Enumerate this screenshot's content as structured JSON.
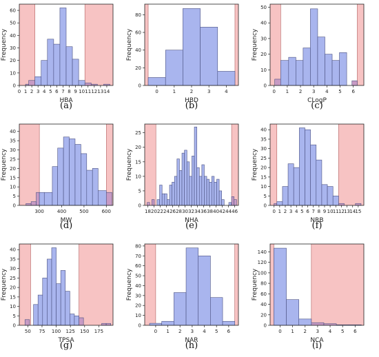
{
  "figure": {
    "bar_color": "#a9b5ee",
    "bar_stroke": "#4a5080",
    "excluded_color": "#f7c3c3",
    "excluded_bar_color": "#c79ac4"
  },
  "chart_data": [
    {
      "id": "a",
      "letter": "(a)",
      "type": "bar",
      "xlabel": "HBA",
      "ylabel": "Frequency",
      "xlim": [
        0,
        15
      ],
      "ylim": [
        0,
        65
      ],
      "xticks": [
        0,
        1,
        2,
        3,
        4,
        5,
        6,
        7,
        8,
        9,
        10,
        11,
        12,
        13,
        14
      ],
      "yticks": [
        0,
        10,
        20,
        30,
        40,
        50,
        60
      ],
      "excluded_ranges": [
        [
          0,
          2.5
        ],
        [
          10.5,
          15
        ]
      ],
      "bins": [
        {
          "x0": 1,
          "x1": 1.5,
          "value": 1,
          "excluded": true
        },
        {
          "x0": 1.5,
          "x1": 2.5,
          "value": 4,
          "excluded": true
        },
        {
          "x0": 2.5,
          "x1": 3.5,
          "value": 7
        },
        {
          "x0": 3.5,
          "x1": 4.5,
          "value": 20
        },
        {
          "x0": 4.5,
          "x1": 5.5,
          "value": 37
        },
        {
          "x0": 5.5,
          "x1": 6.5,
          "value": 33
        },
        {
          "x0": 6.5,
          "x1": 7.5,
          "value": 62
        },
        {
          "x0": 7.5,
          "x1": 8.5,
          "value": 31
        },
        {
          "x0": 8.5,
          "x1": 9.5,
          "value": 21
        },
        {
          "x0": 9.5,
          "x1": 10.5,
          "value": 4
        },
        {
          "x0": 10.5,
          "x1": 11.5,
          "value": 2,
          "excluded": true
        },
        {
          "x0": 11.5,
          "x1": 12.5,
          "value": 1,
          "excluded": true
        },
        {
          "x0": 13.5,
          "x1": 14.5,
          "value": 1,
          "excluded": true
        }
      ]
    },
    {
      "id": "b",
      "letter": "(b)",
      "type": "bar",
      "xlabel": "HBD",
      "ylabel": "Frequency",
      "xlim": [
        -0.7,
        4.7
      ],
      "ylim": [
        0,
        92
      ],
      "xticks": [
        0,
        1,
        2,
        3,
        4
      ],
      "yticks": [
        0,
        20,
        40,
        60,
        80
      ],
      "excluded_ranges": [
        [
          -0.7,
          -0.5
        ],
        [
          4.5,
          4.7
        ]
      ],
      "bins": [
        {
          "x0": -0.5,
          "x1": 0.5,
          "value": 9
        },
        {
          "x0": 0.5,
          "x1": 1.5,
          "value": 40
        },
        {
          "x0": 1.5,
          "x1": 2.5,
          "value": 87
        },
        {
          "x0": 2.5,
          "x1": 3.5,
          "value": 66
        },
        {
          "x0": 3.5,
          "x1": 4.5,
          "value": 16
        }
      ]
    },
    {
      "id": "c",
      "letter": "(c)",
      "type": "bar",
      "xlabel": "CLogP",
      "ylabel": "Frequency",
      "xlim": [
        -0.3,
        6.8
      ],
      "ylim": [
        0,
        52
      ],
      "xticks": [
        0,
        1,
        2,
        3,
        4,
        5,
        6
      ],
      "yticks": [
        0,
        10,
        20,
        30,
        40,
        50
      ],
      "excluded_ranges": [
        [
          -0.3,
          0.5
        ],
        [
          6.3,
          6.8
        ]
      ],
      "bins": [
        {
          "x0": 0.05,
          "x1": 0.5,
          "value": 4,
          "excluded": true
        },
        {
          "x0": 0.5,
          "x1": 1.1,
          "value": 16
        },
        {
          "x0": 1.1,
          "x1": 1.65,
          "value": 18
        },
        {
          "x0": 1.65,
          "x1": 2.2,
          "value": 16
        },
        {
          "x0": 2.2,
          "x1": 2.75,
          "value": 24
        },
        {
          "x0": 2.75,
          "x1": 3.3,
          "value": 49
        },
        {
          "x0": 3.3,
          "x1": 3.85,
          "value": 31
        },
        {
          "x0": 3.85,
          "x1": 4.4,
          "value": 20
        },
        {
          "x0": 4.4,
          "x1": 4.95,
          "value": 16
        },
        {
          "x0": 4.95,
          "x1": 5.5,
          "value": 21
        },
        {
          "x0": 5.9,
          "x1": 6.3,
          "value": 3,
          "excluded": true
        }
      ]
    },
    {
      "id": "d",
      "letter": "(d)",
      "type": "bar",
      "xlabel": "MW",
      "ylabel": "Frequency",
      "xlim": [
        210,
        630
      ],
      "ylim": [
        0,
        44
      ],
      "xticks": [
        300,
        400,
        500,
        600
      ],
      "yticks": [
        0,
        5,
        10,
        15,
        20,
        25,
        30,
        35,
        40
      ],
      "excluded_ranges": [
        [
          210,
          300
        ],
        [
          600,
          630
        ]
      ],
      "bins": [
        {
          "x0": 240,
          "x1": 263,
          "value": 1,
          "excluded": true
        },
        {
          "x0": 263,
          "x1": 286,
          "value": 2,
          "excluded": true
        },
        {
          "x0": 286,
          "x1": 300,
          "value": 7,
          "excluded": true
        },
        {
          "x0": 300,
          "x1": 322,
          "value": 7
        },
        {
          "x0": 322,
          "x1": 358,
          "value": 7
        },
        {
          "x0": 358,
          "x1": 382,
          "value": 21
        },
        {
          "x0": 382,
          "x1": 408,
          "value": 31
        },
        {
          "x0": 408,
          "x1": 434,
          "value": 37
        },
        {
          "x0": 434,
          "x1": 460,
          "value": 36
        },
        {
          "x0": 460,
          "x1": 486,
          "value": 33
        },
        {
          "x0": 486,
          "x1": 512,
          "value": 28
        },
        {
          "x0": 512,
          "x1": 538,
          "value": 19
        },
        {
          "x0": 538,
          "x1": 563,
          "value": 20
        },
        {
          "x0": 563,
          "x1": 600,
          "value": 8
        },
        {
          "x0": 600,
          "x1": 625,
          "value": 7,
          "excluded": true
        }
      ]
    },
    {
      "id": "e",
      "letter": "(e)",
      "type": "bar",
      "xlabel": "NHA",
      "ylabel": "Frequency",
      "xlim": [
        17,
        47.2
      ],
      "ylim": [
        0,
        28
      ],
      "xticks": [
        18,
        20,
        22,
        24,
        26,
        28,
        30,
        32,
        34,
        36,
        38,
        40,
        42,
        44,
        46
      ],
      "yticks": [
        0,
        5,
        10,
        15,
        20,
        25
      ],
      "excluded_ranges": [
        [
          17,
          20.6
        ],
        [
          45,
          47.2
        ]
      ],
      "bins": [
        {
          "x0": 17.8,
          "x1": 18.6,
          "value": 1,
          "excluded": true
        },
        {
          "x0": 19.3,
          "x1": 20.1,
          "value": 2,
          "excluded": true
        },
        {
          "x0": 21,
          "x1": 21.8,
          "value": 2
        },
        {
          "x0": 21.8,
          "x1": 22.6,
          "value": 7
        },
        {
          "x0": 22.6,
          "x1": 23.4,
          "value": 4
        },
        {
          "x0": 23.4,
          "x1": 24.2,
          "value": 4
        },
        {
          "x0": 24.2,
          "x1": 25,
          "value": 2
        },
        {
          "x0": 25,
          "x1": 25.8,
          "value": 7
        },
        {
          "x0": 25.8,
          "x1": 26.6,
          "value": 8
        },
        {
          "x0": 26.6,
          "x1": 27.4,
          "value": 10
        },
        {
          "x0": 27.4,
          "x1": 28.2,
          "value": 16
        },
        {
          "x0": 28.2,
          "x1": 29,
          "value": 12
        },
        {
          "x0": 29,
          "x1": 29.8,
          "value": 18
        },
        {
          "x0": 29.8,
          "x1": 30.6,
          "value": 19
        },
        {
          "x0": 30.6,
          "x1": 31.4,
          "value": 15
        },
        {
          "x0": 31.4,
          "x1": 32.2,
          "value": 10
        },
        {
          "x0": 32.2,
          "x1": 33,
          "value": 17
        },
        {
          "x0": 33,
          "x1": 33.8,
          "value": 27
        },
        {
          "x0": 33.8,
          "x1": 34.6,
          "value": 13
        },
        {
          "x0": 34.6,
          "x1": 35.4,
          "value": 10
        },
        {
          "x0": 35.4,
          "x1": 36.2,
          "value": 14
        },
        {
          "x0": 36.2,
          "x1": 37,
          "value": 10
        },
        {
          "x0": 37,
          "x1": 37.8,
          "value": 9
        },
        {
          "x0": 37.8,
          "x1": 38.6,
          "value": 8
        },
        {
          "x0": 38.6,
          "x1": 39.4,
          "value": 10
        },
        {
          "x0": 39.4,
          "x1": 40.2,
          "value": 8
        },
        {
          "x0": 40.2,
          "x1": 41,
          "value": 9
        },
        {
          "x0": 41,
          "x1": 41.8,
          "value": 5
        },
        {
          "x0": 41.8,
          "x1": 42.6,
          "value": 2
        },
        {
          "x0": 44.1,
          "x1": 44.9,
          "value": 1
        },
        {
          "x0": 45,
          "x1": 45.8,
          "value": 3,
          "excluded": true
        },
        {
          "x0": 45.8,
          "x1": 46.6,
          "value": 2,
          "excluded": true
        }
      ]
    },
    {
      "id": "f",
      "letter": "(f)",
      "type": "bar",
      "xlabel": "NRB",
      "ylabel": "Frequency",
      "xlim": [
        -0.7,
        16
      ],
      "ylim": [
        0,
        43
      ],
      "xticks": [
        0,
        1,
        2,
        3,
        4,
        5,
        6,
        7,
        8,
        9,
        10,
        11,
        12,
        13,
        14,
        15
      ],
      "yticks": [
        0,
        5,
        10,
        15,
        20,
        25,
        30,
        35,
        40
      ],
      "excluded_ranges": [
        [
          -0.7,
          0.5
        ],
        [
          11.5,
          16
        ]
      ],
      "bins": [
        {
          "x0": 0,
          "x1": 0.5,
          "value": 1,
          "excluded": true
        },
        {
          "x0": 0.5,
          "x1": 1.5,
          "value": 2
        },
        {
          "x0": 1.5,
          "x1": 2.5,
          "value": 10
        },
        {
          "x0": 2.5,
          "x1": 3.5,
          "value": 22
        },
        {
          "x0": 3.5,
          "x1": 4.5,
          "value": 20
        },
        {
          "x0": 4.5,
          "x1": 5.5,
          "value": 41
        },
        {
          "x0": 5.5,
          "x1": 6.5,
          "value": 40
        },
        {
          "x0": 6.5,
          "x1": 7.5,
          "value": 32
        },
        {
          "x0": 7.5,
          "x1": 8.5,
          "value": 24
        },
        {
          "x0": 8.5,
          "x1": 9.5,
          "value": 11
        },
        {
          "x0": 9.5,
          "x1": 10.5,
          "value": 10
        },
        {
          "x0": 10.5,
          "x1": 11.5,
          "value": 5
        },
        {
          "x0": 11.5,
          "x1": 12.5,
          "value": 1,
          "excluded": true
        },
        {
          "x0": 14.5,
          "x1": 15.5,
          "value": 1,
          "excluded": true
        }
      ]
    },
    {
      "id": "g",
      "letter": "(g)",
      "type": "bar",
      "xlabel": "TPSA",
      "ylabel": "Frequency",
      "xlim": [
        35,
        200
      ],
      "ylim": [
        0,
        43
      ],
      "xticks": [
        50,
        75,
        100,
        125,
        150,
        175
      ],
      "yticks": [
        0,
        5,
        10,
        15,
        20,
        25,
        30,
        35,
        40
      ],
      "excluded_ranges": [
        [
          35,
          55
        ],
        [
          140,
          200
        ]
      ],
      "bins": [
        {
          "x0": 45,
          "x1": 53,
          "value": 3,
          "excluded": true
        },
        {
          "x0": 60,
          "x1": 68,
          "value": 11
        },
        {
          "x0": 68,
          "x1": 76,
          "value": 16
        },
        {
          "x0": 76,
          "x1": 84,
          "value": 25
        },
        {
          "x0": 84,
          "x1": 92,
          "value": 35
        },
        {
          "x0": 92,
          "x1": 100,
          "value": 41
        },
        {
          "x0": 100,
          "x1": 108,
          "value": 22
        },
        {
          "x0": 108,
          "x1": 116,
          "value": 29
        },
        {
          "x0": 116,
          "x1": 124,
          "value": 18
        },
        {
          "x0": 124,
          "x1": 132,
          "value": 6
        },
        {
          "x0": 132,
          "x1": 140,
          "value": 5
        },
        {
          "x0": 140,
          "x1": 148,
          "value": 4,
          "excluded": true
        },
        {
          "x0": 180,
          "x1": 188,
          "value": 1,
          "excluded": true
        },
        {
          "x0": 188,
          "x1": 196,
          "value": 1,
          "excluded": true
        }
      ]
    },
    {
      "id": "h",
      "letter": "(h)",
      "type": "bar",
      "xlabel": "NAR",
      "ylabel": "Frequency",
      "xlim": [
        -0.9,
        6.8
      ],
      "ylim": [
        0,
        82
      ],
      "xticks": [
        0,
        1,
        2,
        3,
        4,
        5,
        6
      ],
      "yticks": [
        0,
        10,
        20,
        30,
        40,
        50,
        60,
        70,
        80
      ],
      "excluded_ranges": [
        [
          -0.9,
          0
        ],
        [
          6.5,
          6.8
        ]
      ],
      "bins": [
        {
          "x0": -0.5,
          "x1": 0.5,
          "value": 2
        },
        {
          "x0": 0.5,
          "x1": 1.5,
          "value": 4
        },
        {
          "x0": 1.5,
          "x1": 2.5,
          "value": 33
        },
        {
          "x0": 2.5,
          "x1": 3.5,
          "value": 78
        },
        {
          "x0": 3.5,
          "x1": 4.5,
          "value": 70
        },
        {
          "x0": 4.5,
          "x1": 5.5,
          "value": 28
        },
        {
          "x0": 5.5,
          "x1": 6.5,
          "value": 4
        }
      ]
    },
    {
      "id": "i",
      "letter": "(i)",
      "type": "bar",
      "xlabel": "NCA",
      "ylabel": "Frequency",
      "xlim": [
        -0.8,
        6.7
      ],
      "ylim": [
        0,
        155
      ],
      "xticks": [
        0,
        1,
        2,
        3,
        4,
        5,
        6
      ],
      "yticks": [
        0,
        20,
        40,
        60,
        80,
        100,
        120,
        140
      ],
      "excluded_ranges": [
        [
          -0.8,
          -0.5
        ],
        [
          2.5,
          6.7
        ]
      ],
      "bins": [
        {
          "x0": -0.5,
          "x1": 0.5,
          "value": 147
        },
        {
          "x0": 0.5,
          "x1": 1.5,
          "value": 49
        },
        {
          "x0": 1.5,
          "x1": 2.5,
          "value": 12
        },
        {
          "x0": 2.5,
          "x1": 3.5,
          "value": 5,
          "excluded": true
        },
        {
          "x0": 3.5,
          "x1": 4.5,
          "value": 3,
          "excluded": true
        },
        {
          "x0": 4.5,
          "x1": 5.5,
          "value": 1,
          "excluded": true
        },
        {
          "x0": 5.5,
          "x1": 6.5,
          "value": 1,
          "excluded": true
        }
      ]
    }
  ]
}
